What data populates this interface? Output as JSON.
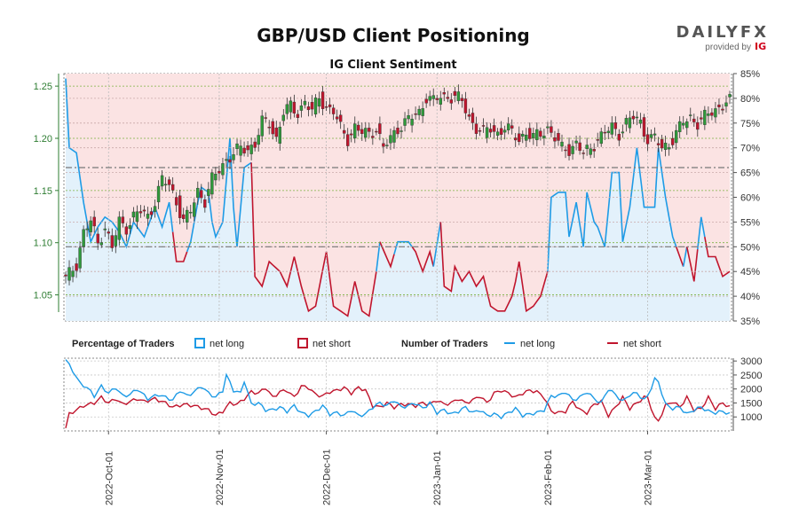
{
  "title": "GBP/USD Client Positioning",
  "subtitle": "IG Client Sentiment",
  "logo": {
    "brand_main": "DAILYFX",
    "provided_by": "provided by",
    "ig_mark": "IG"
  },
  "colors": {
    "long": "#1e9be6",
    "short": "#c0152d",
    "up": "#2e9a3a",
    "down": "#c0152d",
    "long_fill": "#e3f1fb",
    "short_fill": "#fbe3e3"
  },
  "legend": {
    "pct_heading": "Percentage of Traders",
    "num_heading": "Number of Traders",
    "net_long": "net long",
    "net_short": "net short"
  },
  "chart_data": {
    "type": "candlestick+area+line",
    "price_axis": {
      "ticks": [
        "1.05",
        "1.10",
        "1.15",
        "1.20",
        "1.25"
      ],
      "range": [
        1.025,
        1.262
      ]
    },
    "pct_axis": {
      "ticks": [
        "35%",
        "40%",
        "45%",
        "50%",
        "55%",
        "60%",
        "65%",
        "70%",
        "75%",
        "80%",
        "85%"
      ],
      "range": [
        35,
        85
      ],
      "reference_lines": [
        50,
        66
      ]
    },
    "count_axis": {
      "ticks": [
        "1000",
        "1500",
        "2000",
        "2500",
        "3000"
      ],
      "range": [
        500,
        3100
      ]
    },
    "date_labels": [
      "2022-Oct-01",
      "2022-Nov-01",
      "2022-Dec-01",
      "2023-Jan-01",
      "2023-Feb-01",
      "2023-Mar-01"
    ],
    "percent_long_anchors": [
      [
        0,
        84
      ],
      [
        1,
        70
      ],
      [
        3,
        69
      ],
      [
        5,
        59
      ],
      [
        7,
        51
      ],
      [
        9,
        54
      ],
      [
        11,
        56
      ],
      [
        13,
        55
      ],
      [
        15,
        53
      ],
      [
        17,
        50
      ],
      [
        19,
        55
      ],
      [
        22,
        52
      ],
      [
        25,
        58
      ],
      [
        27,
        54
      ],
      [
        29,
        59
      ],
      [
        31,
        47
      ],
      [
        33,
        47
      ],
      [
        35,
        51
      ],
      [
        37,
        59
      ],
      [
        38,
        62
      ],
      [
        40,
        61
      ],
      [
        41,
        55
      ],
      [
        42,
        52
      ],
      [
        44,
        55
      ],
      [
        46,
        72
      ],
      [
        47,
        58
      ],
      [
        48,
        50
      ],
      [
        50,
        66
      ],
      [
        52,
        67
      ],
      [
        53,
        44
      ],
      [
        55,
        42
      ],
      [
        57,
        47
      ],
      [
        60,
        45
      ],
      [
        62,
        42
      ],
      [
        64,
        48
      ],
      [
        66,
        42
      ],
      [
        68,
        37
      ],
      [
        70,
        38
      ],
      [
        73,
        49
      ],
      [
        75,
        38
      ],
      [
        77,
        37
      ],
      [
        79,
        36
      ],
      [
        81,
        43
      ],
      [
        83,
        37
      ],
      [
        85,
        36
      ],
      [
        87,
        45
      ],
      [
        88,
        51
      ],
      [
        91,
        46
      ],
      [
        93,
        51
      ],
      [
        96,
        51
      ],
      [
        98,
        49
      ],
      [
        100,
        45
      ],
      [
        102,
        49
      ],
      [
        103,
        46
      ],
      [
        105,
        55
      ],
      [
        106,
        42
      ],
      [
        108,
        41
      ],
      [
        109,
        46
      ],
      [
        111,
        43
      ],
      [
        113,
        45
      ],
      [
        115,
        42
      ],
      [
        117,
        44
      ],
      [
        119,
        38
      ],
      [
        121,
        37
      ],
      [
        123,
        37
      ],
      [
        125,
        40
      ],
      [
        126,
        43
      ],
      [
        127,
        47
      ],
      [
        129,
        37
      ],
      [
        131,
        38
      ],
      [
        133,
        40
      ],
      [
        135,
        45
      ],
      [
        136,
        60
      ],
      [
        138,
        61
      ],
      [
        140,
        61
      ],
      [
        141,
        52
      ],
      [
        143,
        59
      ],
      [
        145,
        50
      ],
      [
        146,
        61
      ],
      [
        148,
        55
      ],
      [
        149,
        54
      ],
      [
        151,
        50
      ],
      [
        153,
        65
      ],
      [
        155,
        65
      ],
      [
        156,
        51
      ],
      [
        158,
        58
      ],
      [
        160,
        70
      ],
      [
        162,
        58
      ],
      [
        163,
        58
      ],
      [
        165,
        58
      ],
      [
        166,
        70
      ],
      [
        168,
        60
      ],
      [
        170,
        52
      ],
      [
        173,
        46
      ],
      [
        174,
        50
      ],
      [
        176,
        43
      ],
      [
        178,
        56
      ],
      [
        180,
        48
      ],
      [
        182,
        48
      ],
      [
        184,
        44
      ],
      [
        186,
        45
      ]
    ],
    "trader_count_long_anchors": [
      [
        0,
        3050
      ],
      [
        2,
        2650
      ],
      [
        4,
        2200
      ],
      [
        6,
        2050
      ],
      [
        8,
        1750
      ],
      [
        10,
        2100
      ],
      [
        12,
        1850
      ],
      [
        14,
        2050
      ],
      [
        16,
        1750
      ],
      [
        18,
        1800
      ],
      [
        20,
        2000
      ],
      [
        23,
        1650
      ],
      [
        26,
        1800
      ],
      [
        28,
        1700
      ],
      [
        30,
        1600
      ],
      [
        32,
        1950
      ],
      [
        34,
        1750
      ],
      [
        36,
        1900
      ],
      [
        38,
        2100
      ],
      [
        40,
        1850
      ],
      [
        42,
        1700
      ],
      [
        44,
        1950
      ],
      [
        45,
        2500
      ],
      [
        47,
        1950
      ],
      [
        49,
        1850
      ],
      [
        50,
        2300
      ],
      [
        52,
        1450
      ],
      [
        54,
        1500
      ],
      [
        56,
        1250
      ],
      [
        58,
        1250
      ],
      [
        60,
        1350
      ],
      [
        62,
        1200
      ],
      [
        64,
        1400
      ],
      [
        66,
        1150
      ],
      [
        68,
        1050
      ],
      [
        70,
        1200
      ],
      [
        72,
        1400
      ],
      [
        74,
        1100
      ],
      [
        76,
        1150
      ],
      [
        78,
        1050
      ],
      [
        80,
        1250
      ],
      [
        82,
        1050
      ],
      [
        84,
        1100
      ],
      [
        86,
        1350
      ],
      [
        88,
        1500
      ],
      [
        90,
        1400
      ],
      [
        92,
        1600
      ],
      [
        94,
        1350
      ],
      [
        96,
        1400
      ],
      [
        98,
        1500
      ],
      [
        100,
        1300
      ],
      [
        102,
        1500
      ],
      [
        104,
        1150
      ],
      [
        106,
        1250
      ],
      [
        108,
        1100
      ],
      [
        110,
        1200
      ],
      [
        112,
        1350
      ],
      [
        114,
        1150
      ],
      [
        116,
        1250
      ],
      [
        118,
        1050
      ],
      [
        120,
        1100
      ],
      [
        122,
        1000
      ],
      [
        124,
        1150
      ],
      [
        126,
        1300
      ],
      [
        128,
        1050
      ],
      [
        130,
        1100
      ],
      [
        132,
        1150
      ],
      [
        134,
        1250
      ],
      [
        136,
        1750
      ],
      [
        138,
        1750
      ],
      [
        140,
        1900
      ],
      [
        142,
        1600
      ],
      [
        144,
        1700
      ],
      [
        146,
        1900
      ],
      [
        148,
        1650
      ],
      [
        150,
        1500
      ],
      [
        152,
        2000
      ],
      [
        154,
        1800
      ],
      [
        156,
        1550
      ],
      [
        158,
        1800
      ],
      [
        160,
        1850
      ],
      [
        162,
        1600
      ],
      [
        163,
        1750
      ],
      [
        165,
        2350
      ],
      [
        166,
        2250
      ],
      [
        168,
        1450
      ],
      [
        170,
        1300
      ],
      [
        172,
        1350
      ],
      [
        174,
        1100
      ],
      [
        176,
        1250
      ],
      [
        178,
        1350
      ],
      [
        180,
        1200
      ],
      [
        182,
        1150
      ],
      [
        184,
        1200
      ],
      [
        186,
        1100
      ]
    ],
    "trader_count_short_anchors": [
      [
        0,
        600
      ],
      [
        1,
        1100
      ],
      [
        3,
        1250
      ],
      [
        5,
        1400
      ],
      [
        8,
        1500
      ],
      [
        10,
        1700
      ],
      [
        12,
        1500
      ],
      [
        14,
        1650
      ],
      [
        16,
        1450
      ],
      [
        18,
        1550
      ],
      [
        20,
        1650
      ],
      [
        22,
        1550
      ],
      [
        25,
        1650
      ],
      [
        28,
        1500
      ],
      [
        30,
        1350
      ],
      [
        33,
        1450
      ],
      [
        36,
        1400
      ],
      [
        40,
        1250
      ],
      [
        42,
        1050
      ],
      [
        44,
        1200
      ],
      [
        46,
        1500
      ],
      [
        48,
        1450
      ],
      [
        50,
        1650
      ],
      [
        52,
        1900
      ],
      [
        54,
        1850
      ],
      [
        56,
        2050
      ],
      [
        58,
        1700
      ],
      [
        60,
        1900
      ],
      [
        62,
        1950
      ],
      [
        64,
        1700
      ],
      [
        66,
        2100
      ],
      [
        68,
        2050
      ],
      [
        70,
        1800
      ],
      [
        72,
        1750
      ],
      [
        74,
        1900
      ],
      [
        76,
        1950
      ],
      [
        78,
        2050
      ],
      [
        80,
        1850
      ],
      [
        82,
        2050
      ],
      [
        84,
        1950
      ],
      [
        86,
        1400
      ],
      [
        88,
        1350
      ],
      [
        90,
        1500
      ],
      [
        92,
        1350
      ],
      [
        94,
        1450
      ],
      [
        96,
        1450
      ],
      [
        98,
        1400
      ],
      [
        100,
        1500
      ],
      [
        102,
        1450
      ],
      [
        104,
        1600
      ],
      [
        106,
        1450
      ],
      [
        108,
        1500
      ],
      [
        110,
        1650
      ],
      [
        112,
        1500
      ],
      [
        114,
        1600
      ],
      [
        116,
        1750
      ],
      [
        118,
        1500
      ],
      [
        120,
        1850
      ],
      [
        122,
        1950
      ],
      [
        124,
        1850
      ],
      [
        126,
        1700
      ],
      [
        128,
        1850
      ],
      [
        130,
        1950
      ],
      [
        132,
        1900
      ],
      [
        134,
        1700
      ],
      [
        136,
        1200
      ],
      [
        138,
        1150
      ],
      [
        140,
        1200
      ],
      [
        142,
        1550
      ],
      [
        144,
        1250
      ],
      [
        146,
        1150
      ],
      [
        148,
        1450
      ],
      [
        150,
        1550
      ],
      [
        152,
        1050
      ],
      [
        154,
        1350
      ],
      [
        156,
        1700
      ],
      [
        158,
        1300
      ],
      [
        160,
        1500
      ],
      [
        162,
        1700
      ],
      [
        163,
        1700
      ],
      [
        165,
        950
      ],
      [
        166,
        850
      ],
      [
        168,
        1400
      ],
      [
        170,
        1550
      ],
      [
        172,
        1350
      ],
      [
        174,
        1700
      ],
      [
        176,
        1250
      ],
      [
        178,
        1300
      ],
      [
        180,
        1700
      ],
      [
        182,
        1300
      ],
      [
        184,
        1500
      ],
      [
        186,
        1350
      ]
    ],
    "price_anchors": [
      [
        0,
        1.065
      ],
      [
        3,
        1.08
      ],
      [
        5,
        1.11
      ],
      [
        7,
        1.12
      ],
      [
        9,
        1.1
      ],
      [
        11,
        1.115
      ],
      [
        13,
        1.095
      ],
      [
        15,
        1.12
      ],
      [
        17,
        1.115
      ],
      [
        19,
        1.125
      ],
      [
        21,
        1.13
      ],
      [
        23,
        1.125
      ],
      [
        25,
        1.14
      ],
      [
        27,
        1.16
      ],
      [
        29,
        1.155
      ],
      [
        31,
        1.14
      ],
      [
        33,
        1.12
      ],
      [
        35,
        1.13
      ],
      [
        37,
        1.15
      ],
      [
        39,
        1.14
      ],
      [
        41,
        1.16
      ],
      [
        43,
        1.17
      ],
      [
        45,
        1.18
      ],
      [
        47,
        1.185
      ],
      [
        49,
        1.19
      ],
      [
        51,
        1.19
      ],
      [
        53,
        1.195
      ],
      [
        55,
        1.215
      ],
      [
        57,
        1.215
      ],
      [
        59,
        1.2
      ],
      [
        61,
        1.225
      ],
      [
        63,
        1.23
      ],
      [
        65,
        1.225
      ],
      [
        67,
        1.235
      ],
      [
        69,
        1.225
      ],
      [
        71,
        1.24
      ],
      [
        73,
        1.23
      ],
      [
        75,
        1.225
      ],
      [
        77,
        1.21
      ],
      [
        79,
        1.2
      ],
      [
        81,
        1.21
      ],
      [
        83,
        1.205
      ],
      [
        85,
        1.205
      ],
      [
        87,
        1.21
      ],
      [
        89,
        1.19
      ],
      [
        91,
        1.2
      ],
      [
        93,
        1.21
      ],
      [
        95,
        1.215
      ],
      [
        97,
        1.22
      ],
      [
        99,
        1.225
      ],
      [
        101,
        1.24
      ],
      [
        103,
        1.235
      ],
      [
        105,
        1.24
      ],
      [
        107,
        1.24
      ],
      [
        109,
        1.24
      ],
      [
        111,
        1.235
      ],
      [
        113,
        1.22
      ],
      [
        115,
        1.21
      ],
      [
        117,
        1.205
      ],
      [
        119,
        1.21
      ],
      [
        121,
        1.205
      ],
      [
        123,
        1.21
      ],
      [
        125,
        1.205
      ],
      [
        127,
        1.2
      ],
      [
        129,
        1.205
      ],
      [
        131,
        1.2
      ],
      [
        133,
        1.205
      ],
      [
        135,
        1.21
      ],
      [
        137,
        1.2
      ],
      [
        139,
        1.19
      ],
      [
        141,
        1.19
      ],
      [
        143,
        1.195
      ],
      [
        145,
        1.185
      ],
      [
        147,
        1.19
      ],
      [
        149,
        1.2
      ],
      [
        151,
        1.205
      ],
      [
        153,
        1.21
      ],
      [
        155,
        1.205
      ],
      [
        157,
        1.215
      ],
      [
        159,
        1.22
      ],
      [
        161,
        1.215
      ],
      [
        163,
        1.2
      ],
      [
        165,
        1.2
      ],
      [
        167,
        1.19
      ],
      [
        169,
        1.195
      ],
      [
        171,
        1.205
      ],
      [
        173,
        1.215
      ],
      [
        175,
        1.22
      ],
      [
        177,
        1.215
      ],
      [
        179,
        1.22
      ],
      [
        181,
        1.225
      ],
      [
        183,
        1.23
      ],
      [
        185,
        1.235
      ],
      [
        186,
        1.235
      ]
    ]
  }
}
